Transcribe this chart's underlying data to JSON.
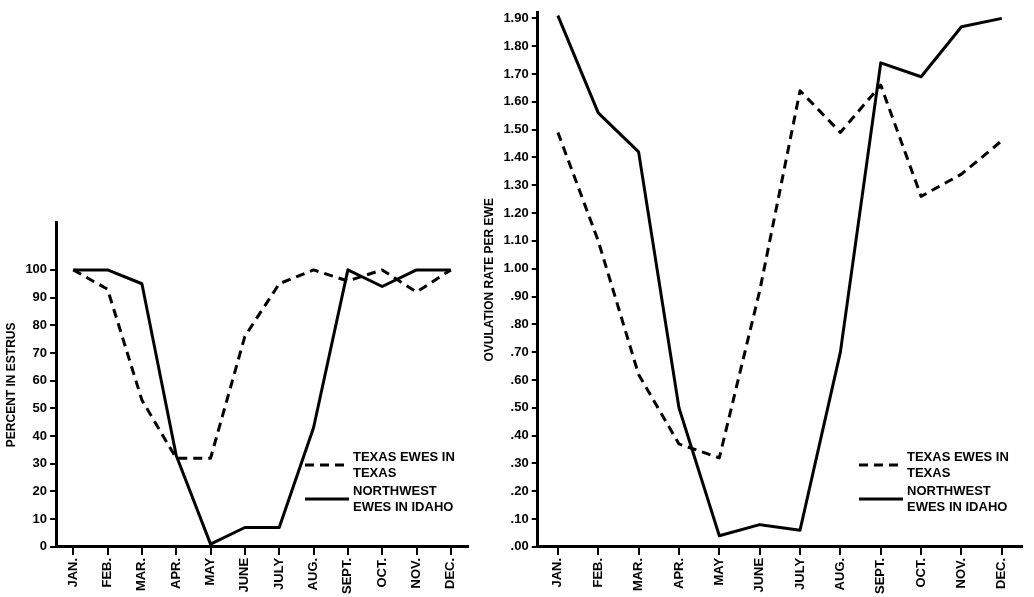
{
  "chart_data": [
    {
      "type": "line",
      "ylabel": "PERCENT IN ESTRUS",
      "categories": [
        "JAN.",
        "FEB.",
        "MAR.",
        "APR.",
        "MAY",
        "JUNE",
        "JULY",
        "AUG.",
        "SEPT.",
        "OCT.",
        "NOV.",
        "DEC."
      ],
      "series": [
        {
          "name": "TEXAS EWES IN TEXAS",
          "color": "#000000",
          "line_style": "dashed",
          "values": [
            100,
            93,
            53,
            32,
            32,
            76,
            95,
            100,
            96,
            100,
            92,
            100
          ]
        },
        {
          "name": "NORTHWEST EWES IN IDAHO",
          "color": "#000000",
          "line_style": "solid",
          "values": [
            100,
            100,
            95,
            33,
            1,
            7,
            7,
            43,
            100,
            94,
            100,
            100
          ]
        }
      ],
      "ylim": [
        0,
        117
      ],
      "yticks": [
        0,
        10,
        20,
        30,
        40,
        50,
        60,
        70,
        80,
        90,
        100
      ],
      "grid": false,
      "legend": "bottom right",
      "marker": "none"
    },
    {
      "type": "line",
      "ylabel": "OVULATION RATE PER EWE",
      "categories": [
        "JAN.",
        "FEB.",
        "MAR.",
        "APR.",
        "MAY",
        "JUNE",
        "JULY",
        "AUG.",
        "SEPT.",
        "OCT.",
        "NOV.",
        "DEC."
      ],
      "series": [
        {
          "name": "TEXAS EWES IN TEXAS",
          "color": "#000000",
          "line_style": "dashed",
          "values": [
            1.49,
            1.1,
            0.62,
            0.37,
            0.32,
            0.92,
            1.64,
            1.49,
            1.66,
            1.26,
            1.34,
            1.46
          ]
        },
        {
          "name": "NORTHWEST EWES IN IDAHO",
          "color": "#000000",
          "line_style": "solid",
          "values": [
            1.91,
            1.56,
            1.42,
            0.5,
            0.04,
            0.08,
            0.06,
            0.7,
            1.74,
            1.69,
            1.87,
            1.9
          ]
        }
      ],
      "ylim": [
        0,
        1.92
      ],
      "yticks": [
        {
          "value": 0,
          "label": ".00"
        },
        {
          "value": 0.1,
          "label": ".10"
        },
        {
          "value": 0.2,
          "label": ".20"
        },
        {
          "value": 0.3,
          "label": ".30"
        },
        {
          "value": 0.4,
          "label": ".40"
        },
        {
          "value": 0.5,
          "label": ".50"
        },
        {
          "value": 0.6,
          "label": ".60"
        },
        {
          "value": 0.7,
          "label": ".70"
        },
        {
          "value": 0.8,
          "label": ".80"
        },
        {
          "value": 0.9,
          "label": ".90"
        },
        {
          "value": 1,
          "label": "1.00"
        },
        {
          "value": 1.1,
          "label": "1.10"
        },
        {
          "value": 1.2,
          "label": "1.20"
        },
        {
          "value": 1.3,
          "label": "1.30"
        },
        {
          "value": 1.4,
          "label": "1.40"
        },
        {
          "value": 1.5,
          "label": "1.50"
        },
        {
          "value": 1.6,
          "label": "1.60"
        },
        {
          "value": 1.7,
          "label": "1.70"
        },
        {
          "value": 1.8,
          "label": "1.80"
        },
        {
          "value": 1.9,
          "label": "1.90"
        }
      ],
      "grid": false,
      "legend": "bottom right",
      "marker": "none"
    }
  ]
}
